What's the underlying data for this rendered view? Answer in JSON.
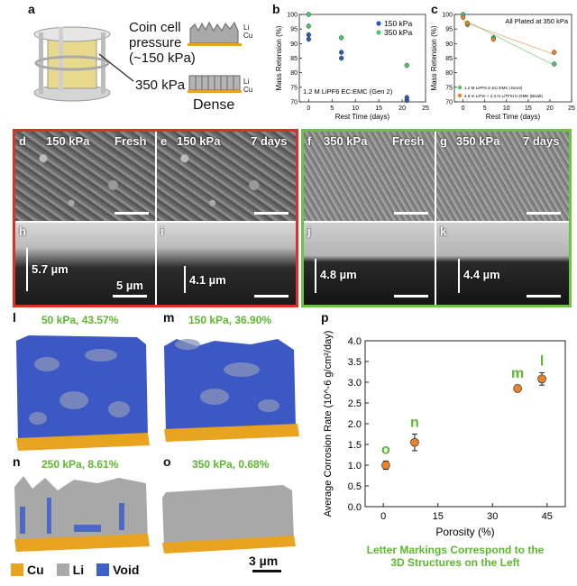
{
  "panel_a": {
    "label": "a",
    "coin_cell_line1": "Coin cell",
    "coin_cell_line2": "pressure",
    "coin_cell_line3": "(~150 kPa)",
    "high_pressure": "350 kPa",
    "dense_label": "Dense",
    "li": "Li",
    "cu": "Cu"
  },
  "panel_b": {
    "label": "b"
  },
  "panel_c": {
    "label": "c"
  },
  "sem_panels": [
    {
      "label": "d",
      "title": "150 kPa",
      "state": "Fresh"
    },
    {
      "label": "e",
      "title": "150 kPa",
      "state": "7 days"
    },
    {
      "label": "f",
      "title": "350 kPa",
      "state": "Fresh"
    },
    {
      "label": "g",
      "title": "350 kPa",
      "state": "7 days"
    }
  ],
  "xsec_panels": [
    {
      "label": "h",
      "thickness": "5.7 µm",
      "scale": "5 µm"
    },
    {
      "label": "i",
      "thickness": "4.1 µm"
    },
    {
      "label": "j",
      "thickness": "4.8 µm"
    },
    {
      "label": "k",
      "thickness": "4.4 µm"
    }
  ],
  "structures": [
    {
      "label": "l",
      "caption": "50 kPa, 43.57%"
    },
    {
      "label": "m",
      "caption": "150 kPa, 36.90%"
    },
    {
      "label": "n",
      "caption": "250 kPa, 8.61%"
    },
    {
      "label": "o",
      "caption": "350 kPa, 0.68%"
    }
  ],
  "legend_3d": {
    "cu": "Cu",
    "li": "Li",
    "void": "Void",
    "scale": "3 µm"
  },
  "colors": {
    "cu": "#e8a321",
    "li": "#a8a8a8",
    "void": "#3d5fc8",
    "green": "#5cb82f",
    "red_frame": "#d9302c",
    "green_frame": "#72c043"
  },
  "panel_p": {
    "label": "p",
    "caption_line1": "Letter Markings Correspond to the",
    "caption_line2": "3D Structures on the Left"
  },
  "chart_data": [
    {
      "type": "scatter",
      "panel": "b",
      "title": "",
      "annotation": "1.2 M LiPF6 EC:EMC (Gen 2)",
      "xlabel": "Rest Time (days)",
      "ylabel": "Mass Retension (%)",
      "xlim": [
        -2,
        25
      ],
      "ylim": [
        70,
        100
      ],
      "xticks": [
        0,
        5,
        10,
        15,
        20,
        25
      ],
      "yticks": [
        70,
        75,
        80,
        85,
        90,
        95,
        100
      ],
      "series": [
        {
          "name": "150 kPa",
          "color": "#2a5bb0",
          "x": [
            0,
            0,
            7,
            7,
            21,
            21
          ],
          "y": [
            91.5,
            93,
            85,
            87,
            70.5,
            71.5
          ]
        },
        {
          "name": "350 kPa",
          "color": "#4fc46a",
          "x": [
            0,
            0,
            7,
            21
          ],
          "y": [
            100,
            96,
            92,
            82.5
          ]
        }
      ]
    },
    {
      "type": "scatter",
      "panel": "c",
      "title": "All Plated at 350 kPa",
      "xlabel": "Rest Time (days)",
      "ylabel": "Mass Retension (%)",
      "xlim": [
        -2,
        25
      ],
      "ylim": [
        70,
        100
      ],
      "xticks": [
        0,
        5,
        10,
        15,
        20,
        25
      ],
      "yticks": [
        70,
        75,
        80,
        85,
        90,
        95,
        100
      ],
      "series": [
        {
          "name": "1.2 M LiPF6 in EC:EMC (Gen2)",
          "color": "#4fc46a",
          "x": [
            0,
            1,
            7,
            21
          ],
          "y": [
            100,
            96.5,
            92,
            83
          ]
        },
        {
          "name": "4.6 m LiFSI + 2.3 m LiTFSI in DME (Bisalt)",
          "color": "#e8842a",
          "x": [
            0,
            1,
            7,
            21
          ],
          "y": [
            99,
            97,
            91.5,
            87
          ]
        }
      ]
    },
    {
      "type": "scatter",
      "panel": "p",
      "title": "",
      "xlabel": "Porosity (%)",
      "ylabel": "Average Corrosion Rate (10^-6 g/cm²/day)",
      "xlim": [
        -5,
        50
      ],
      "ylim": [
        0,
        4
      ],
      "xticks": [
        0,
        15,
        30,
        45
      ],
      "yticks": [
        0.0,
        0.5,
        1.0,
        1.5,
        2.0,
        2.5,
        3.0,
        3.5,
        4.0
      ],
      "points": [
        {
          "letter": "o",
          "x": 0.68,
          "y": 1.0,
          "err": 0.1
        },
        {
          "letter": "n",
          "x": 8.61,
          "y": 1.55,
          "err": 0.2
        },
        {
          "letter": "m",
          "x": 36.9,
          "y": 2.85,
          "err": 0.08
        },
        {
          "letter": "l",
          "x": 43.57,
          "y": 3.08,
          "err": 0.15
        }
      ]
    }
  ]
}
